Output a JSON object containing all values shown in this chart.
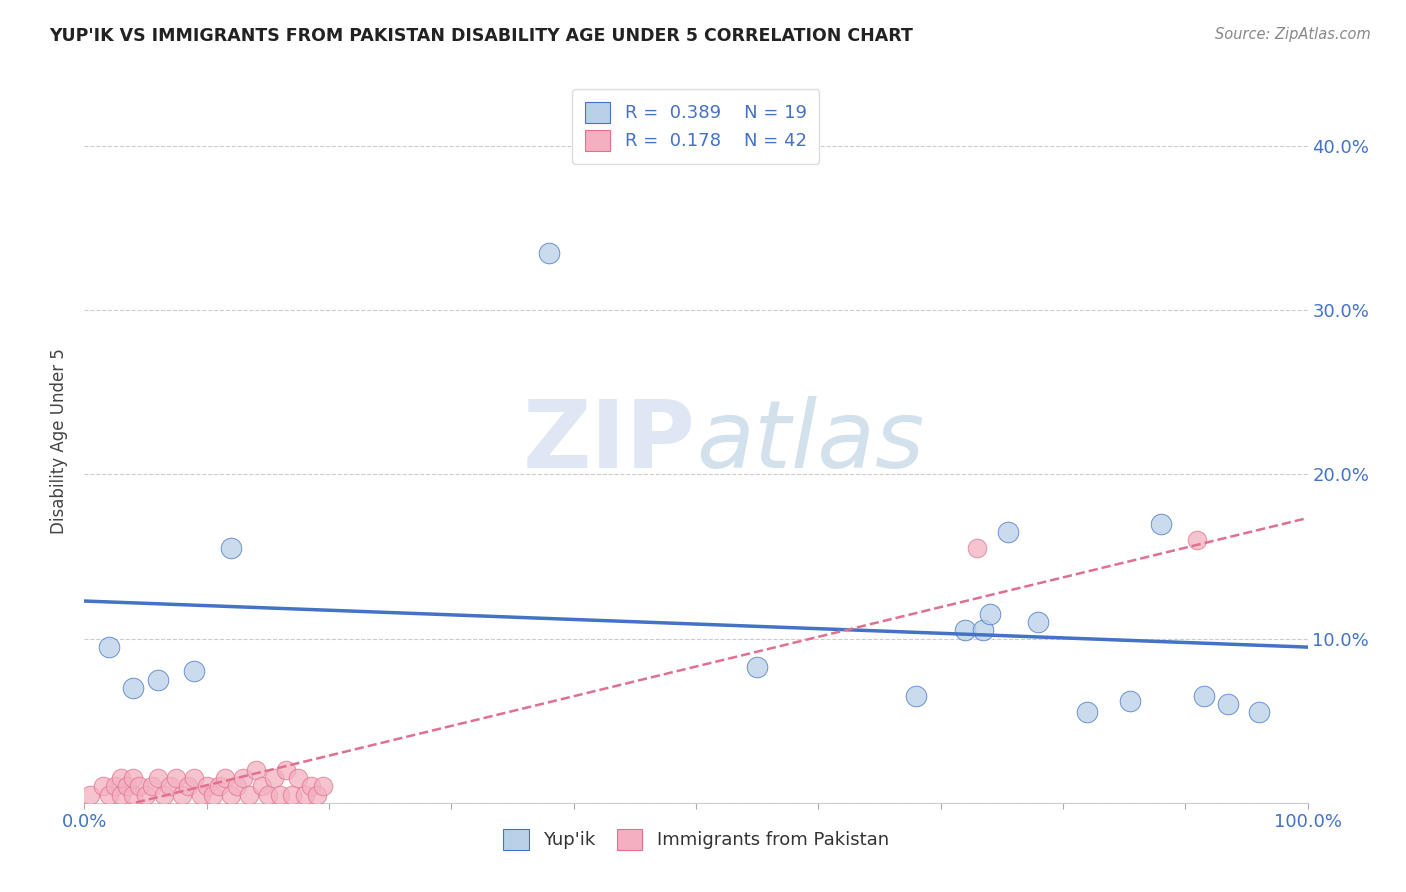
{
  "title": "YUP'IK VS IMMIGRANTS FROM PAKISTAN DISABILITY AGE UNDER 5 CORRELATION CHART",
  "source": "Source: ZipAtlas.com",
  "ylabel": "Disability Age Under 5",
  "watermark_zip": "ZIP",
  "watermark_atlas": "atlas",
  "yupik_R": 0.389,
  "yupik_N": 19,
  "pakistan_R": 0.178,
  "pakistan_N": 42,
  "yupik_color": "#b8d0e8",
  "pakistan_color": "#f4b0c0",
  "yupik_line_color": "#4472c4",
  "pakistan_line_color": "#e07090",
  "xlim": [
    0.0,
    1.0
  ],
  "ylim": [
    0.0,
    0.44
  ],
  "yticks": [
    0.0,
    0.1,
    0.2,
    0.3,
    0.4
  ],
  "ytick_labels": [
    "",
    "10.0%",
    "20.0%",
    "30.0%",
    "40.0%"
  ],
  "xticks": [
    0.0,
    0.1,
    0.2,
    0.3,
    0.4,
    0.5,
    0.6,
    0.7,
    0.8,
    0.9,
    1.0
  ],
  "xtick_labels": [
    "0.0%",
    "",
    "",
    "",
    "",
    "",
    "",
    "",
    "",
    "",
    "100.0%"
  ],
  "yupik_x": [
    0.02,
    0.04,
    0.06,
    0.09,
    0.12,
    0.38,
    0.55,
    0.68,
    0.72,
    0.735,
    0.74,
    0.755,
    0.78,
    0.82,
    0.855,
    0.88,
    0.915,
    0.935,
    0.96
  ],
  "yupik_y": [
    0.095,
    0.07,
    0.075,
    0.08,
    0.155,
    0.335,
    0.083,
    0.065,
    0.105,
    0.105,
    0.115,
    0.165,
    0.11,
    0.055,
    0.062,
    0.17,
    0.065,
    0.06,
    0.055
  ],
  "pakistan_x": [
    0.005,
    0.015,
    0.02,
    0.025,
    0.03,
    0.03,
    0.035,
    0.04,
    0.04,
    0.045,
    0.05,
    0.055,
    0.06,
    0.065,
    0.07,
    0.075,
    0.08,
    0.085,
    0.09,
    0.095,
    0.1,
    0.105,
    0.11,
    0.115,
    0.12,
    0.125,
    0.13,
    0.135,
    0.14,
    0.145,
    0.15,
    0.155,
    0.16,
    0.165,
    0.17,
    0.175,
    0.18,
    0.185,
    0.19,
    0.195,
    0.73,
    0.91
  ],
  "pakistan_y": [
    0.005,
    0.01,
    0.005,
    0.01,
    0.005,
    0.015,
    0.01,
    0.005,
    0.015,
    0.01,
    0.005,
    0.01,
    0.015,
    0.005,
    0.01,
    0.015,
    0.005,
    0.01,
    0.015,
    0.005,
    0.01,
    0.005,
    0.01,
    0.015,
    0.005,
    0.01,
    0.015,
    0.005,
    0.02,
    0.01,
    0.005,
    0.015,
    0.005,
    0.02,
    0.005,
    0.015,
    0.005,
    0.01,
    0.005,
    0.01,
    0.155,
    0.16
  ],
  "background_color": "#ffffff",
  "grid_color": "#cccccc",
  "bottom_legend_labels": [
    "Yup'ik",
    "Immigrants from Pakistan"
  ]
}
